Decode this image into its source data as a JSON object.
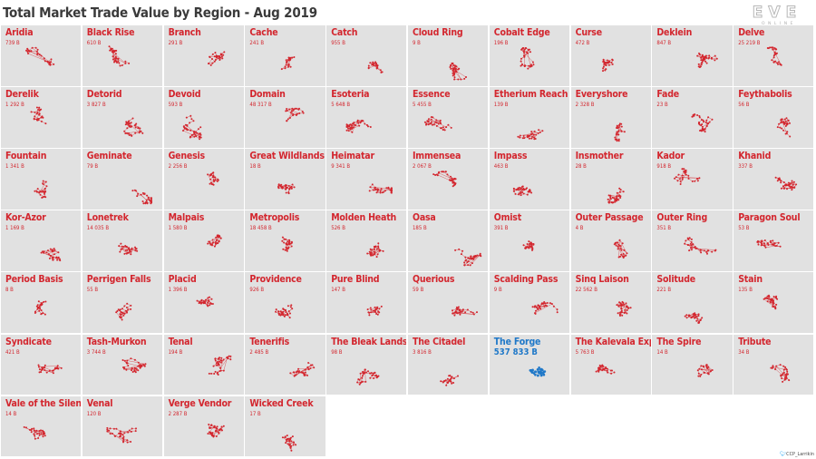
{
  "title": "Total Market Trade Value by Region - Aug 2019",
  "logo": {
    "line1": "EVE",
    "line2": "ONLINE"
  },
  "credit": {
    "icon": "twitter-bird-icon",
    "handle": "CCP_Larrikin"
  },
  "colors": {
    "normal": "#d3262e",
    "highlight": "#1f78c8",
    "tile": "#e1e1e1"
  },
  "chart_data": {
    "type": "table",
    "title": "Total Market Trade Value by Region - Aug 2019",
    "value_unit": "B",
    "highlighted": "The Forge",
    "regions": [
      {
        "name": "Aridia",
        "value": "739 B"
      },
      {
        "name": "Black Rise",
        "value": "610 B"
      },
      {
        "name": "Branch",
        "value": "291 B"
      },
      {
        "name": "Cache",
        "value": "241 B"
      },
      {
        "name": "Catch",
        "value": "955 B"
      },
      {
        "name": "Cloud Ring",
        "value": "9 B"
      },
      {
        "name": "Cobalt Edge",
        "value": "196 B"
      },
      {
        "name": "Curse",
        "value": "472 B"
      },
      {
        "name": "Deklein",
        "value": "847 B"
      },
      {
        "name": "Delve",
        "value": "25 219 B"
      },
      {
        "name": "Derelik",
        "value": "1 292 B"
      },
      {
        "name": "Detorid",
        "value": "3 827 B"
      },
      {
        "name": "Devoid",
        "value": "593 B"
      },
      {
        "name": "Domain",
        "value": "48 317 B"
      },
      {
        "name": "Esoteria",
        "value": "5 648 B"
      },
      {
        "name": "Essence",
        "value": "5 455 B"
      },
      {
        "name": "Etherium Reach",
        "value": "139 B"
      },
      {
        "name": "Everyshore",
        "value": "2 328 B"
      },
      {
        "name": "Fade",
        "value": "23 B"
      },
      {
        "name": "Feythabolis",
        "value": "56 B"
      },
      {
        "name": "Fountain",
        "value": "1 341 B"
      },
      {
        "name": "Geminate",
        "value": "79 B"
      },
      {
        "name": "Genesis",
        "value": "2 256 B"
      },
      {
        "name": "Great Wildlands",
        "value": "18 B"
      },
      {
        "name": "Heimatar",
        "value": "9 341 B"
      },
      {
        "name": "Immensea",
        "value": "2 067 B"
      },
      {
        "name": "Impass",
        "value": "463 B"
      },
      {
        "name": "Insmother",
        "value": "28 B"
      },
      {
        "name": "Kador",
        "value": "918 B"
      },
      {
        "name": "Khanid",
        "value": "337 B"
      },
      {
        "name": "Kor-Azor",
        "value": "1 169 B"
      },
      {
        "name": "Lonetrek",
        "value": "14 035 B"
      },
      {
        "name": "Malpais",
        "value": "1 580 B"
      },
      {
        "name": "Metropolis",
        "value": "18 458 B"
      },
      {
        "name": "Molden Heath",
        "value": "526 B"
      },
      {
        "name": "Oasa",
        "value": "185 B"
      },
      {
        "name": "Omist",
        "value": "391 B"
      },
      {
        "name": "Outer Passage",
        "value": "4 B"
      },
      {
        "name": "Outer Ring",
        "value": "351 B"
      },
      {
        "name": "Paragon Soul",
        "value": "53 B"
      },
      {
        "name": "Period Basis",
        "value": "8 B"
      },
      {
        "name": "Perrigen Falls",
        "value": "55 B"
      },
      {
        "name": "Placid",
        "value": "1 396 B"
      },
      {
        "name": "Providence",
        "value": "926 B"
      },
      {
        "name": "Pure Blind",
        "value": "147 B"
      },
      {
        "name": "Querious",
        "value": "59 B"
      },
      {
        "name": "Scalding Pass",
        "value": "9 B"
      },
      {
        "name": "Sinq Laison",
        "value": "22 562 B"
      },
      {
        "name": "Solitude",
        "value": "221 B"
      },
      {
        "name": "Stain",
        "value": "135 B"
      },
      {
        "name": "Syndicate",
        "value": "421 B"
      },
      {
        "name": "Tash-Murkon",
        "value": "3 744 B"
      },
      {
        "name": "Tenal",
        "value": "194 B"
      },
      {
        "name": "Tenerifis",
        "value": "2 485 B"
      },
      {
        "name": "The Bleak Lands",
        "value": "98 B"
      },
      {
        "name": "The Citadel",
        "value": "3 816 B"
      },
      {
        "name": "The Forge",
        "value": "537 833 B"
      },
      {
        "name": "The Kalevala Expanse",
        "value": "5 763 B"
      },
      {
        "name": "The Spire",
        "value": "14 B"
      },
      {
        "name": "Tribute",
        "value": "34 B"
      },
      {
        "name": "Vale of the Silent",
        "value": "14 B"
      },
      {
        "name": "Venal",
        "value": "120 B"
      },
      {
        "name": "Verge Vendor",
        "value": "2 287 B"
      },
      {
        "name": "Wicked Creek",
        "value": "17 B"
      }
    ]
  }
}
